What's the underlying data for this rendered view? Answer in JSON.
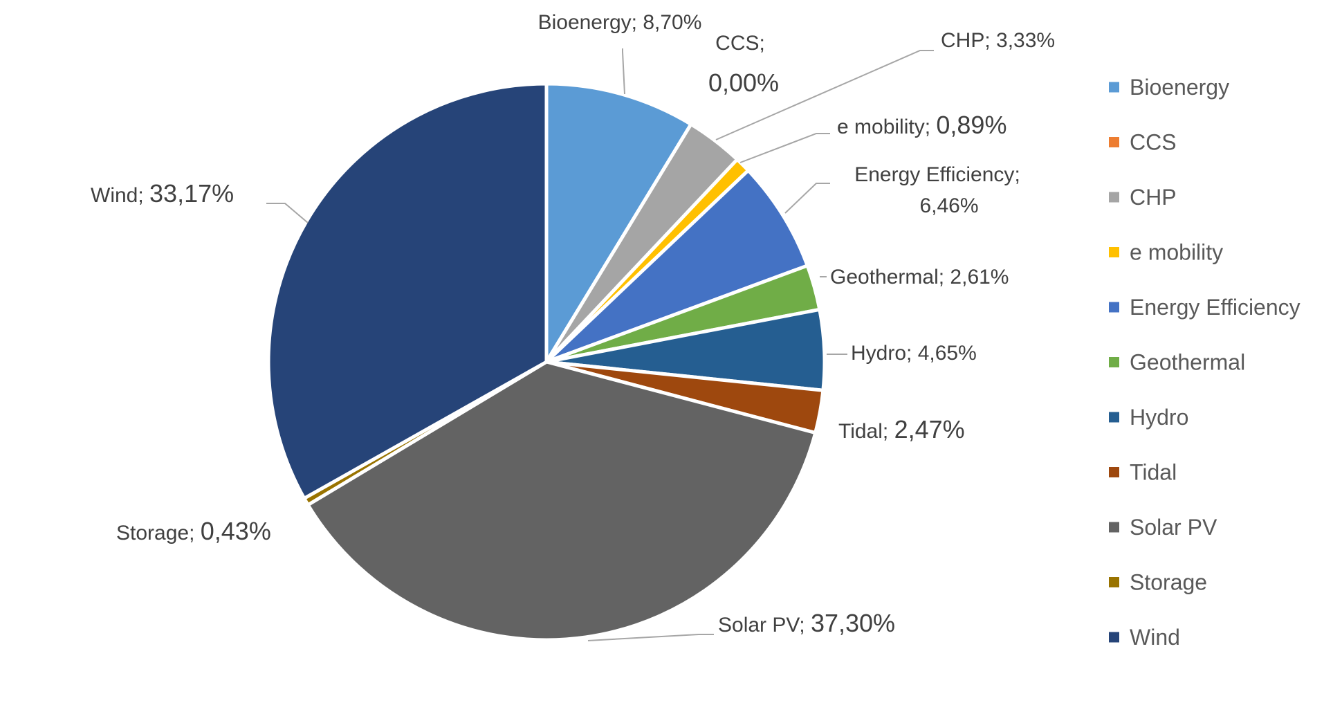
{
  "chart_data": {
    "type": "pie",
    "title": "",
    "legend_position": "right",
    "slices": [
      {
        "name": "Bioenergy",
        "value": 8.7,
        "value_label": "8,70%",
        "color": "#5B9BD5"
      },
      {
        "name": "CCS",
        "value": 0.0,
        "value_label": "0,00%",
        "color": "#ED7D31"
      },
      {
        "name": "CHP",
        "value": 3.33,
        "value_label": "3,33%",
        "color": "#A5A5A5"
      },
      {
        "name": "e mobility",
        "value": 0.89,
        "value_label": "0,89%",
        "color": "#FFC000"
      },
      {
        "name": "Energy Efficiency",
        "value": 6.46,
        "value_label": "6,46%",
        "color": "#4472C4"
      },
      {
        "name": "Geothermal",
        "value": 2.61,
        "value_label": "2,61%",
        "color": "#70AD47"
      },
      {
        "name": "Hydro",
        "value": 4.65,
        "value_label": "4,65%",
        "color": "#255E91"
      },
      {
        "name": "Tidal",
        "value": 2.47,
        "value_label": "2,47%",
        "color": "#9E480E"
      },
      {
        "name": "Solar PV",
        "value": 37.3,
        "value_label": "37,30%",
        "color": "#636363"
      },
      {
        "name": "Storage",
        "value": 0.43,
        "value_label": "0,43%",
        "color": "#997300"
      },
      {
        "name": "Wind",
        "value": 33.17,
        "value_label": "33,17%",
        "color": "#264478"
      }
    ]
  }
}
